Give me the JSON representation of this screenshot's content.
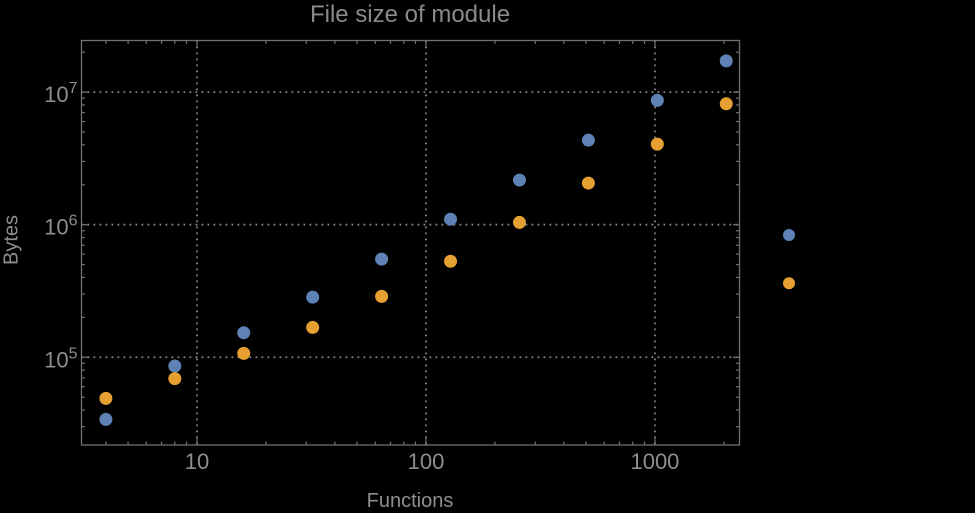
{
  "style": {
    "background": "#000000",
    "frame_color": "#717171",
    "grid_color": "#878787",
    "text_color": "#8e8e8e",
    "title_color": "#8a8a8a"
  },
  "chart_data": {
    "type": "scatter",
    "title": "File size of module",
    "xlabel": "Functions",
    "ylabel": "Bytes",
    "x_scale": "log",
    "y_scale": "log",
    "xlim": [
      3.13,
      2340
    ],
    "ylim": [
      21800,
      24500000
    ],
    "grid": "dotted lines at major ticks, frame box with inward ticks",
    "legend_position": "outside right, markers only (no visible label text)",
    "x_ticks": [
      {
        "value": 10,
        "label": "10"
      },
      {
        "value": 100,
        "label": "100"
      },
      {
        "value": 1000,
        "label": "1000"
      }
    ],
    "y_ticks": [
      {
        "value": 100000,
        "base": "10",
        "exponent": "5"
      },
      {
        "value": 1000000,
        "base": "10",
        "exponent": "6"
      },
      {
        "value": 10000000,
        "base": "10",
        "exponent": "7"
      }
    ],
    "x": [
      4,
      8,
      16,
      32,
      64,
      128,
      256,
      512,
      1024,
      2048
    ],
    "series": [
      {
        "name": "blue-series",
        "color": "#5E82B6",
        "values": [
          34000,
          86000,
          153000,
          284000,
          550000,
          1100000,
          2170000,
          4340000,
          8660000,
          17200000
        ]
      },
      {
        "name": "orange-series",
        "color": "#E6A032",
        "values": [
          49000,
          69000,
          107000,
          168000,
          288000,
          530000,
          1040000,
          2060000,
          4050000,
          8160000
        ]
      }
    ],
    "legend": {
      "entries": [
        {
          "marker_color": "#5E82B6",
          "label": ""
        },
        {
          "marker_color": "#E6A032",
          "label": ""
        }
      ]
    }
  }
}
